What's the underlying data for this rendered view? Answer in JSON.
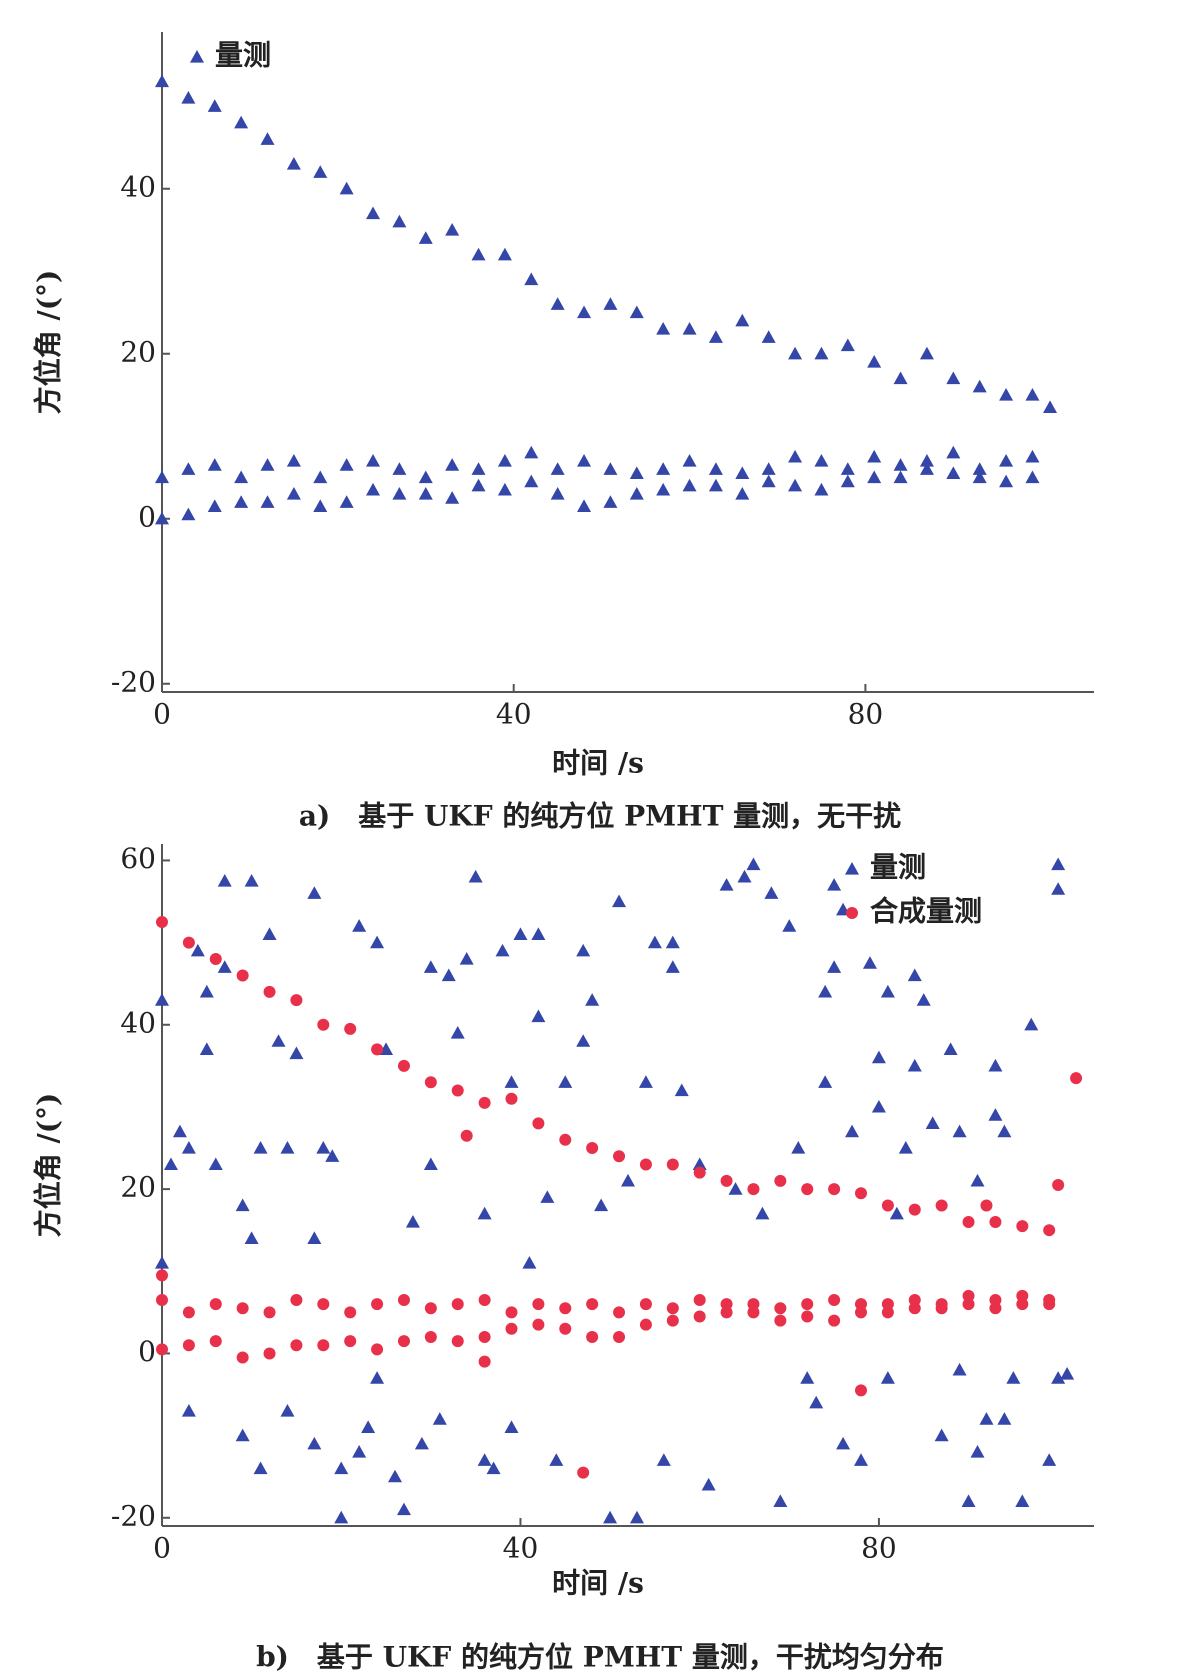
{
  "chart_data": [
    {
      "type": "scatter",
      "title": "a)　基于 UKF 的纯方位 PMHT 量测，无干扰",
      "xlabel": "时间 /s",
      "ylabel": "方位角 /(°)",
      "xlim": [
        0,
        106
      ],
      "ylim": [
        -21,
        59
      ],
      "xticks": [
        0,
        40,
        80
      ],
      "yticks": [
        -20,
        0,
        20,
        40
      ],
      "legend": "upper left",
      "series": [
        {
          "name": "量测",
          "color": "#3446a8",
          "marker": "triangle",
          "x": [
            0,
            3,
            6,
            9,
            12,
            15,
            18,
            21,
            24,
            27,
            30,
            33,
            36,
            39,
            42,
            45,
            48,
            51,
            54,
            57,
            60,
            63,
            66,
            69,
            72,
            75,
            78,
            81,
            84,
            87,
            90,
            93,
            96,
            99,
            101,
            0,
            3,
            6,
            9,
            12,
            15,
            18,
            21,
            24,
            27,
            30,
            33,
            36,
            39,
            42,
            45,
            48,
            51,
            54,
            57,
            60,
            63,
            66,
            69,
            72,
            75,
            78,
            81,
            84,
            87,
            90,
            93,
            96,
            99,
            0,
            3,
            6,
            9,
            12,
            15,
            18,
            21,
            24,
            27,
            30,
            33,
            36,
            39,
            42,
            45,
            48,
            51,
            54,
            57,
            60,
            63,
            66,
            69,
            72,
            75,
            78,
            81,
            84,
            87,
            90,
            93,
            96,
            99
          ],
          "values": [
            53,
            51,
            50,
            48,
            46,
            43,
            42,
            40,
            37,
            36,
            34,
            35,
            32,
            32,
            29,
            26,
            25,
            26,
            25,
            23,
            23,
            22,
            24,
            22,
            20,
            20,
            21,
            19,
            17,
            20,
            17,
            16,
            15,
            15,
            13.5,
            5,
            6,
            6.5,
            5,
            6.5,
            7,
            5,
            6.5,
            7,
            6,
            5,
            6.5,
            6,
            7,
            8,
            6,
            7,
            6,
            5.5,
            6,
            7,
            6,
            5.5,
            6,
            7.5,
            7,
            6,
            7.5,
            6.5,
            7,
            8,
            6,
            7,
            7.5,
            0,
            0.5,
            1.5,
            2,
            2,
            3,
            1.5,
            2,
            3.5,
            3,
            3,
            2.5,
            4,
            3.5,
            4.5,
            3,
            1.5,
            2,
            3,
            3.5,
            4,
            4,
            3,
            4.5,
            4,
            3.5,
            4.5,
            5,
            5,
            6,
            5.5,
            5,
            4.5,
            5
          ]
        }
      ]
    },
    {
      "type": "scatter",
      "title": "b)　基于 UKF 的纯方位 PMHT 量测，干扰均匀分布",
      "xlabel": "时间 /s",
      "ylabel": "方位角 /(°)",
      "xlim": [
        0,
        104
      ],
      "ylim": [
        -21,
        62
      ],
      "xticks": [
        0,
        40,
        80
      ],
      "yticks": [
        -20,
        0,
        20,
        40,
        60
      ],
      "legend": "upper right",
      "series": [
        {
          "name": "量测",
          "color": "#3446a8",
          "marker": "triangle",
          "x": [
            0,
            0,
            1,
            2,
            3,
            3,
            4,
            5,
            5,
            6,
            7,
            7,
            9,
            9,
            10,
            10,
            11,
            11,
            12,
            13,
            14,
            14,
            15,
            17,
            17,
            17,
            18,
            19,
            20,
            20,
            22,
            22,
            23,
            24,
            24,
            25,
            26,
            27,
            28,
            29,
            30,
            30,
            31,
            32,
            33,
            34,
            35,
            36,
            36,
            37,
            38,
            39,
            39,
            40,
            41,
            42,
            42,
            43,
            44,
            45,
            47,
            47,
            48,
            49,
            50,
            51,
            52,
            53,
            54,
            55,
            56,
            57,
            57,
            58,
            60,
            61,
            63,
            64,
            65,
            66,
            67,
            68,
            69,
            70,
            71,
            72,
            73,
            74,
            74,
            75,
            75,
            76,
            76,
            77,
            78,
            79,
            80,
            80,
            81,
            81,
            82,
            83,
            84,
            84,
            85,
            86,
            87,
            88,
            89,
            89,
            90,
            91,
            91,
            92,
            93,
            93,
            94,
            94,
            95,
            96,
            97,
            99,
            100,
            100,
            100,
            101
          ],
          "values": [
            43,
            11,
            23,
            27,
            25,
            -7,
            49,
            44,
            37,
            23,
            57.5,
            47,
            18,
            -10,
            57.5,
            14,
            -14,
            25,
            51,
            38,
            -7,
            25,
            36.5,
            56,
            14,
            -11,
            25,
            24,
            -14,
            -20,
            52,
            -12,
            -9,
            50,
            -3,
            37,
            -15,
            -19,
            16,
            -11,
            47,
            23,
            -8,
            46,
            39,
            48,
            58,
            17,
            -13,
            -14,
            49,
            33,
            -9,
            51,
            11,
            51,
            41,
            19,
            -13,
            33,
            49,
            38,
            43,
            18,
            -20,
            55,
            21,
            -20,
            33,
            50,
            -13,
            50,
            47,
            32,
            23,
            -16,
            57,
            20,
            58,
            59.5,
            17,
            56,
            -18,
            52,
            25,
            -3,
            -6,
            33,
            44,
            57,
            47,
            -11,
            54,
            27,
            -13,
            47.5,
            36,
            30,
            44,
            -3,
            17,
            25,
            35,
            46,
            43,
            28,
            -10,
            37,
            27,
            -2,
            -18,
            21,
            -12,
            -8,
            35,
            29,
            27,
            -8,
            -3,
            -18,
            40,
            -13,
            -3,
            59.5,
            56.5,
            -2.5
          ]
        },
        {
          "name": "合成量测",
          "color": "#e8304a",
          "marker": "circle",
          "x": [
            0,
            3,
            6,
            9,
            12,
            15,
            18,
            21,
            24,
            27,
            30,
            33,
            36,
            39,
            42,
            45,
            48,
            51,
            54,
            57,
            60,
            63,
            66,
            69,
            72,
            75,
            78,
            81,
            84,
            87,
            90,
            93,
            96,
            99,
            100,
            0,
            3,
            6,
            9,
            12,
            15,
            18,
            21,
            24,
            27,
            30,
            33,
            36,
            39,
            42,
            45,
            48,
            51,
            54,
            57,
            60,
            63,
            66,
            69,
            72,
            75,
            78,
            81,
            84,
            87,
            90,
            93,
            96,
            99,
            0,
            3,
            6,
            9,
            12,
            15,
            18,
            21,
            24,
            27,
            30,
            33,
            36,
            39,
            42,
            45,
            48,
            51,
            54,
            57,
            60,
            63,
            66,
            69,
            72,
            75,
            78,
            81,
            84,
            87,
            90,
            93,
            96,
            99,
            0,
            36,
            47,
            78,
            102,
            92,
            34
          ],
          "values": [
            52.5,
            50,
            48,
            46,
            44,
            43,
            40,
            39.5,
            37,
            35,
            33,
            32,
            30.5,
            31,
            28,
            26,
            25,
            24,
            23,
            23,
            22,
            21,
            20,
            21,
            20,
            20,
            19.5,
            18,
            17.5,
            18,
            16,
            16,
            15.5,
            15,
            20.5,
            6.5,
            5,
            6,
            5.5,
            5,
            6.5,
            6,
            5,
            6,
            6.5,
            5.5,
            6,
            6.5,
            5,
            6,
            5.5,
            6,
            5,
            6,
            5.5,
            6.5,
            6,
            6,
            5.5,
            6,
            6.5,
            6,
            6,
            6.5,
            6,
            7,
            6.5,
            7,
            6.5,
            0.5,
            1,
            1.5,
            -0.5,
            0,
            1,
            1,
            1.5,
            0.5,
            1.5,
            2,
            1.5,
            2,
            3,
            3.5,
            3,
            2,
            2,
            3.5,
            4,
            4.5,
            5,
            5,
            4,
            4.5,
            4,
            5,
            5,
            5.5,
            5.5,
            6,
            5.5,
            6,
            6,
            9.5,
            -1,
            -14.5,
            -4.5,
            33.5,
            18,
            26.5
          ]
        }
      ]
    }
  ]
}
